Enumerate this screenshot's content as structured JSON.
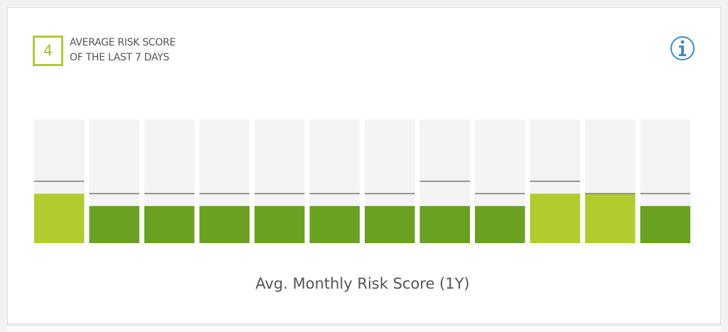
{
  "score": 4,
  "heading_lines": [
    "AVERAGE RISK SCORE",
    "OF THE LAST 7 DAYS"
  ],
  "chart_data": {
    "type": "bar",
    "title": "Avg. Monthly Risk Score (1Y)",
    "ylim": [
      0,
      10
    ],
    "values": [
      4,
      3,
      3,
      3,
      3,
      3,
      3,
      3,
      3,
      4,
      4,
      3
    ],
    "colors": [
      "#b2cc2e",
      "#6aa121",
      "#6aa121",
      "#6aa121",
      "#6aa121",
      "#6aa121",
      "#6aa121",
      "#6aa121",
      "#6aa121",
      "#b2cc2e",
      "#b2cc2e",
      "#6aa121"
    ],
    "markers": [
      5,
      4,
      4,
      4,
      4,
      4,
      4,
      5,
      4,
      5,
      4,
      4
    ],
    "marker_color": "#777777",
    "track_color": "#f4f4f4"
  }
}
